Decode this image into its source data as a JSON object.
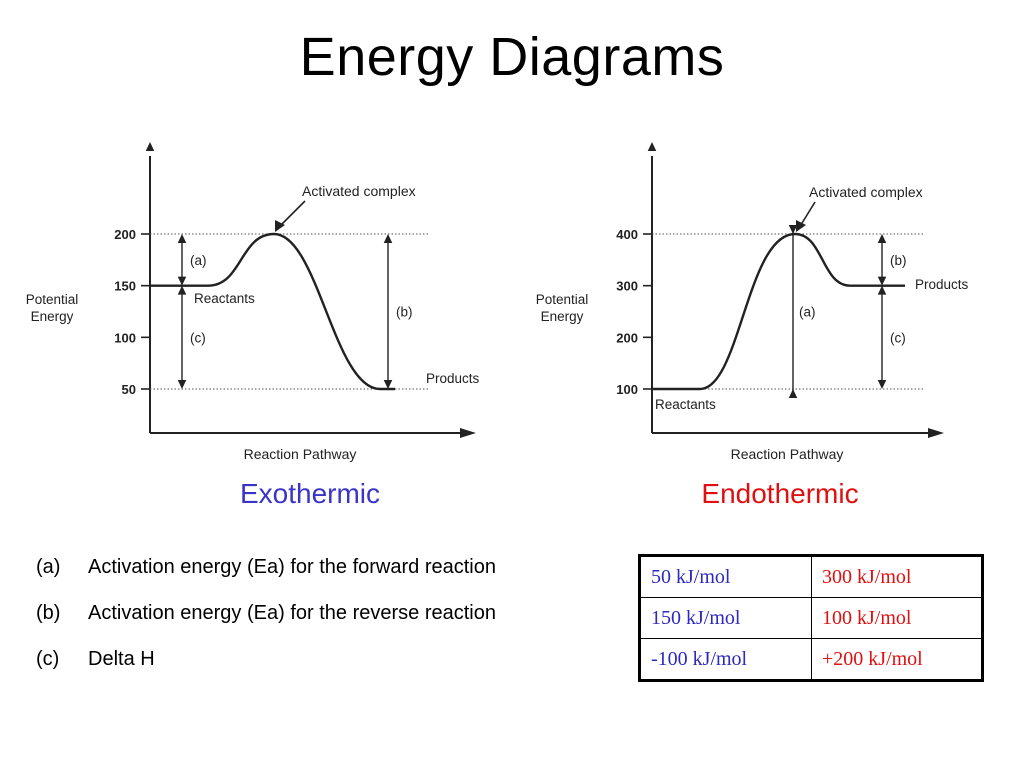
{
  "slide": {
    "title": "Energy Diagrams"
  },
  "chart_data": [
    {
      "type": "line",
      "ylabel": "Potential\nEnergy",
      "xlabel": "Reaction Pathway",
      "yticks": [
        200,
        150,
        100,
        50
      ],
      "reactants_energy": 150,
      "activated_complex_energy": 200,
      "products_energy": 50,
      "annotations": {
        "activated_complex": "Activated complex",
        "reactants": "Reactants",
        "products": "Products",
        "a": "(a)",
        "b": "(b)",
        "c": "(c)"
      },
      "caption": "Exothermic"
    },
    {
      "type": "line",
      "ylabel": "Potential\nEnergy",
      "xlabel": "Reaction Pathway",
      "yticks": [
        400,
        300,
        200,
        100
      ],
      "reactants_energy": 100,
      "activated_complex_energy": 400,
      "products_energy": 300,
      "annotations": {
        "activated_complex": "Activated complex",
        "reactants": "Reactants",
        "products": "Products",
        "a": "(b)",
        "b": "(a)",
        "c": "(c)"
      },
      "caption": "Endothermic"
    }
  ],
  "legend": [
    {
      "key": "(a)",
      "text": "Activation energy (Ea) for the forward reaction"
    },
    {
      "key": "(b)",
      "text": "Activation energy (Ea) for the reverse reaction"
    },
    {
      "key": "(c)",
      "text": "Delta H"
    }
  ],
  "answers": [
    {
      "exo": "50 kJ/mol",
      "endo": "300 kJ/mol"
    },
    {
      "exo": "150 kJ/mol",
      "endo": "100 kJ/mol"
    },
    {
      "exo": "-100 kJ/mol",
      "endo": "+200 kJ/mol"
    }
  ],
  "colors": {
    "exothermic": "#3a34c8",
    "endothermic": "#e01010",
    "exo_answers": "#2c28c0",
    "endo_answers": "#e01010"
  }
}
